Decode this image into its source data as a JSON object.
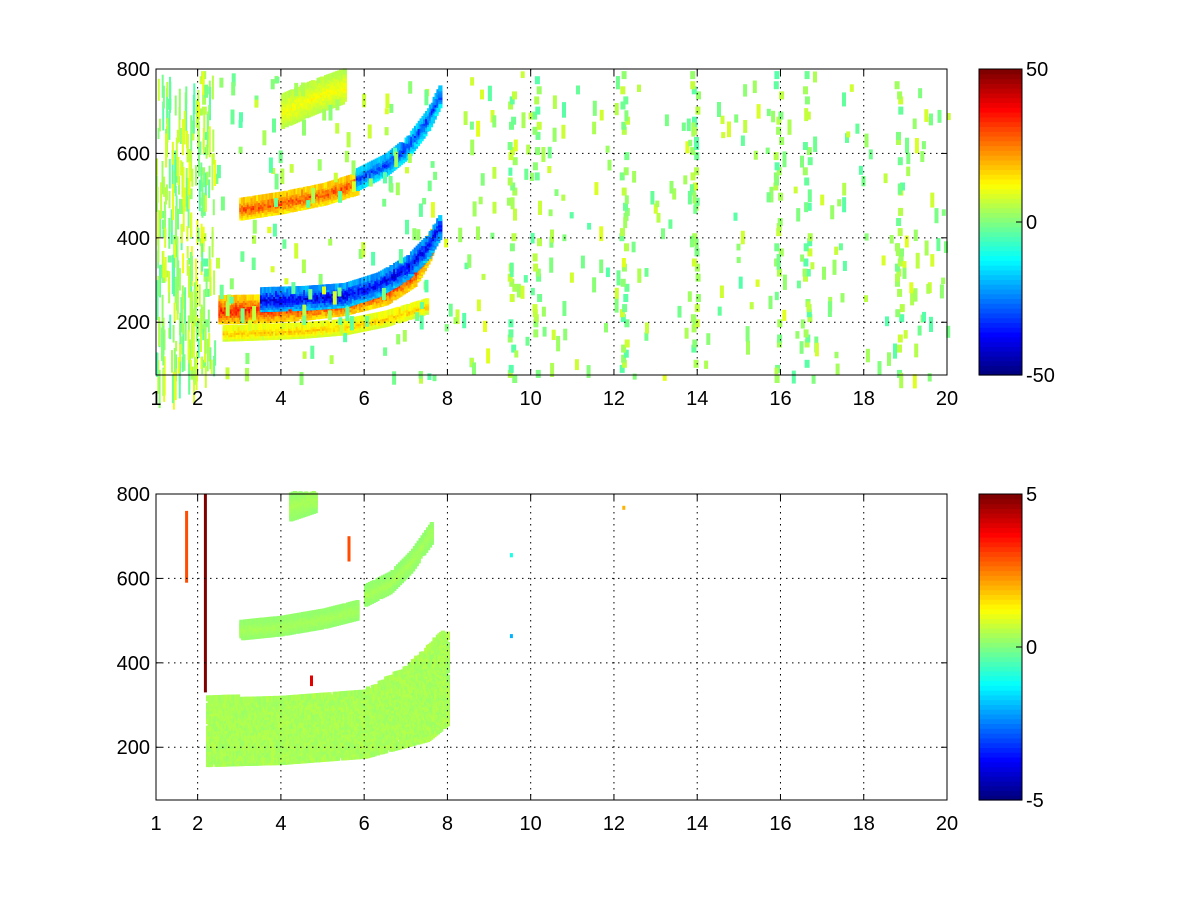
{
  "chart_data": [
    {
      "type": "heatmap",
      "title": "",
      "xlabel": "",
      "ylabel": "",
      "xlim": [
        1,
        20
      ],
      "ylim": [
        75,
        800
      ],
      "x_ticks": [
        1,
        2,
        4,
        6,
        8,
        10,
        12,
        14,
        16,
        18,
        20
      ],
      "x_tick_labels": [
        "1",
        "2",
        "4",
        "6",
        "8",
        "10",
        "12",
        "14",
        "16",
        "18",
        "20"
      ],
      "y_ticks": [
        200,
        400,
        600,
        800
      ],
      "y_tick_labels": [
        "200",
        "400",
        "600",
        "800"
      ],
      "grid": true,
      "colormap": "jet",
      "colorbar": {
        "range": [
          -50,
          50
        ],
        "ticks": [
          -50,
          0,
          50
        ],
        "tick_labels": [
          "-50",
          "0",
          "50"
        ]
      },
      "features": [
        {
          "description": "band",
          "x": [
            2.5,
            3.5,
            4.5,
            5.5,
            6.5,
            7.2,
            7.6
          ],
          "y": [
            230,
            232,
            238,
            250,
            275,
            320,
            390
          ],
          "value": 35,
          "width": 28
        },
        {
          "description": "band",
          "x": [
            3.5,
            4.5,
            5.5,
            6.3,
            7.0,
            7.5,
            7.8
          ],
          "y": [
            255,
            258,
            265,
            290,
            330,
            380,
            430
          ],
          "value": -40,
          "width": 24
        },
        {
          "description": "band",
          "x": [
            3.0,
            4.0,
            5.0,
            5.8
          ],
          "y": [
            470,
            485,
            505,
            530
          ],
          "value": 30,
          "width": 22
        },
        {
          "description": "band",
          "x": [
            5.8,
            6.5,
            7.0,
            7.5,
            7.8
          ],
          "y": [
            540,
            575,
            615,
            680,
            740
          ],
          "value": -32,
          "width": 22
        },
        {
          "description": "band",
          "x": [
            4.0,
            4.8,
            5.5
          ],
          "y": [
            700,
            735,
            760
          ],
          "value": 12,
          "width": 35
        },
        {
          "description": "band",
          "x": [
            2.6,
            3.5,
            4.5,
            5.5,
            6.5,
            7.5
          ],
          "y": [
            175,
            178,
            182,
            190,
            210,
            240
          ],
          "value": 18,
          "width": 14
        }
      ],
      "noise_columns": [
        2.1,
        9.5,
        10.1,
        12.2,
        13.9,
        15.9,
        16.6,
        18.8
      ]
    },
    {
      "type": "heatmap",
      "title": "",
      "xlabel": "",
      "ylabel": "",
      "xlim": [
        1,
        20
      ],
      "ylim": [
        75,
        800
      ],
      "x_ticks": [
        1,
        2,
        4,
        6,
        8,
        10,
        12,
        14,
        16,
        18,
        20
      ],
      "x_tick_labels": [
        "1",
        "2",
        "4",
        "6",
        "8",
        "10",
        "12",
        "14",
        "16",
        "18",
        "20"
      ],
      "y_ticks": [
        200,
        400,
        600,
        800
      ],
      "y_tick_labels": [
        "200",
        "400",
        "600",
        "800"
      ],
      "grid": true,
      "colormap": "jet",
      "colorbar": {
        "range": [
          -5,
          5
        ],
        "ticks": [
          -5,
          0,
          5
        ],
        "tick_labels": [
          "-5",
          "0",
          "5"
        ]
      },
      "features": [
        {
          "description": "region",
          "x_range": [
            2.2,
            8.0
          ],
          "y_lower": [
            [
              2.2,
              160
            ],
            [
              4,
              165
            ],
            [
              6,
              180
            ],
            [
              7.5,
              220
            ],
            [
              8.0,
              260
            ]
          ],
          "y_upper": [
            [
              2.2,
              320
            ],
            [
              4,
              315
            ],
            [
              6,
              335
            ],
            [
              7.0,
              390
            ],
            [
              7.8,
              470
            ]
          ],
          "value": 0.4
        },
        {
          "description": "band",
          "x": [
            3.0,
            4.0,
            5.0,
            5.8
          ],
          "y": [
            478,
            488,
            505,
            525
          ],
          "value": 0.4,
          "width": 18
        },
        {
          "description": "band",
          "x": [
            6.0,
            6.6,
            7.1,
            7.6
          ],
          "y": [
            560,
            590,
            640,
            710
          ],
          "value": 0.4,
          "width": 20
        },
        {
          "description": "band",
          "x": [
            4.2,
            4.8
          ],
          "y": [
            770,
            790
          ],
          "value": 0.4,
          "width": 28
        }
      ],
      "outliers": [
        {
          "x": 2.15,
          "y_range": [
            330,
            800
          ],
          "value": 5
        },
        {
          "x": 1.7,
          "y_range": [
            590,
            760
          ],
          "value": 3
        },
        {
          "x": 5.6,
          "y_range": [
            640,
            700
          ],
          "value": 3
        },
        {
          "x": 4.7,
          "y_range": [
            345,
            370
          ],
          "value": 4
        },
        {
          "x": 9.5,
          "y_range": [
            650,
            660
          ],
          "value": -1
        },
        {
          "x": 9.5,
          "y_range": [
            460,
            468
          ],
          "value": -2
        },
        {
          "x": 12.2,
          "y_range": [
            765,
            772
          ],
          "value": 2
        }
      ]
    }
  ]
}
